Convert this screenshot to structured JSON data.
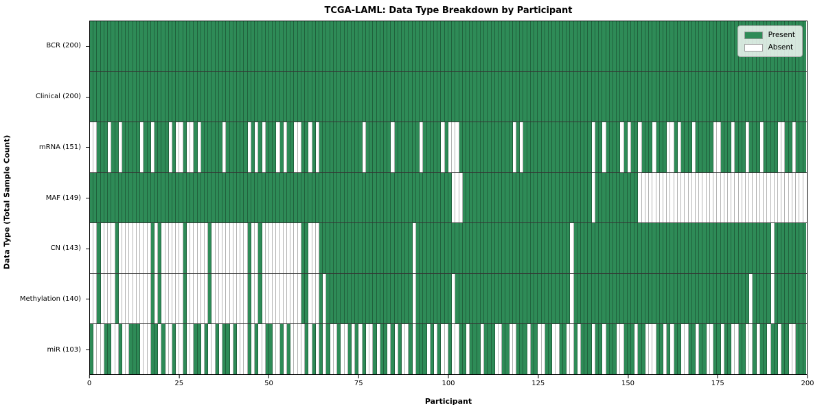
{
  "title": "TCGA-LAML: Data Type Breakdown by Participant",
  "xlabel": "Participant",
  "ylabel": "Data Type (Total Sample Count)",
  "legend": {
    "present_label": "Present",
    "absent_label": "Absent"
  },
  "colors": {
    "present": "#2e8b57",
    "absent": "#ffffff",
    "gridline": "rgba(0,0,0,0.3)",
    "row_divider": "rgba(0,0,0,0.8)",
    "frame": "#000000"
  },
  "x_ticks": [
    0,
    25,
    50,
    75,
    100,
    125,
    150,
    175,
    200
  ],
  "chart_data": {
    "type": "heatmap",
    "x_range": [
      0,
      200
    ],
    "n_participants": 200,
    "grid": true,
    "legend_position": "upper right",
    "rows": [
      {
        "name": "BCR",
        "label": "BCR (200)",
        "total": 200,
        "pattern": "11111111111111111111111111111111111111111111111111111111111111111111111111111111111111111111111111111111111111111111111111111111111111111111111111111111111111111111111111111111111111111111111111111111"
      },
      {
        "name": "Clinical",
        "label": "Clinical (200)",
        "total": 200,
        "pattern": "11111111111111111111111111111111111111111111111111111111111111111111111111111111111111111111111111111111111111111111111111111111111111111111111111111111111111111111111111111111111111111111111111111111"
      },
      {
        "name": "mRNA",
        "label": "mRNA (151)",
        "total": 151,
        "pattern": "00111011011111011011110100100101111110111111010101110101100110101111111111110111111101111111011111010001111111111111110101111111111111111111011011110101101110111001011101111100111011101110111100110111"
      },
      {
        "name": "MAF",
        "label": "MAF (149)",
        "total": 149,
        "pattern": "11111111111111111111111111111111111111111111111111111111111111111111111111111111111111111111111111111000111111111111111111111111111111111111011111111111100000000000000000000000000000000000000000000000"
      },
      {
        "name": "CN",
        "label": "CN (143)",
        "total": 143,
        "pattern": "00100001000000000101000000100000010000000000100100000000000110001111111111111111111111111101111111111111111111111111111111111111111111011111111111111111111111111111111111111111111111111111110111111111"
      },
      {
        "name": "Methylation",
        "label": "Methylation (140)",
        "total": 140,
        "pattern": "00100001000000000101000000100000010000000000100100000000000110001011111111111111111111111101111111111011111111111111111111111111111111011111111111111111111111111111111111111111111111110111110111111111"
      },
      {
        "name": "miR",
        "label": "miR (103)",
        "total": 103,
        "pattern": "10001100100111000110100100100110100101101000101001100101000010101010010010101001011010100101110101001001101110111001100111011001100110010111011011100111011000110101100110110011011001100101101101100111"
      }
    ]
  }
}
